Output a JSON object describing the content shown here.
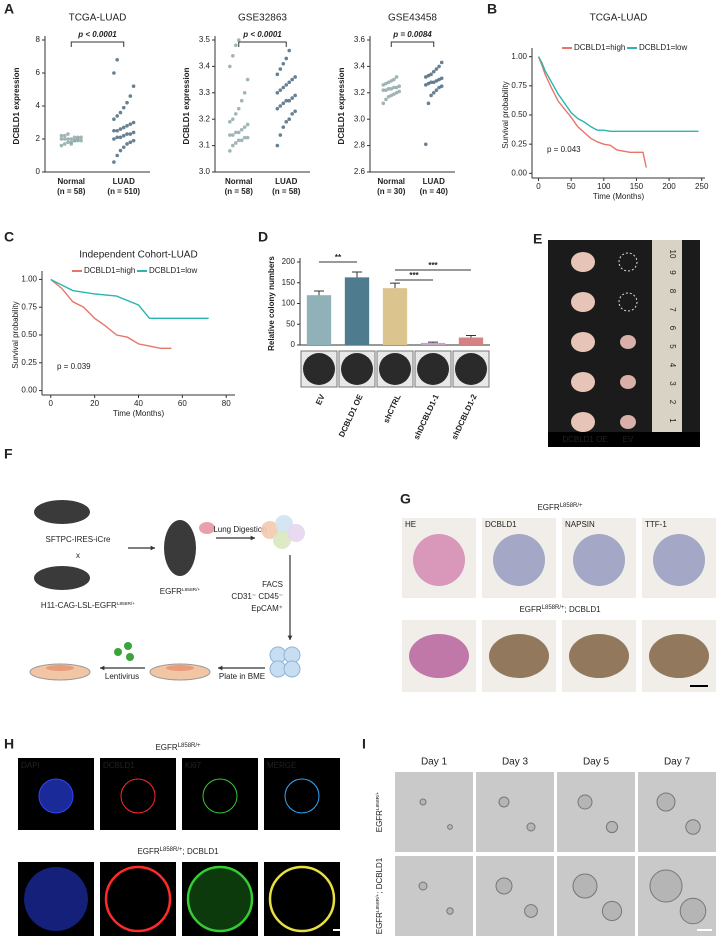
{
  "chart_data": [
    {
      "type": "strip",
      "title": "TCGA-LUAD",
      "ylabel": "DCBLD1 expression",
      "categories": [
        "Normal",
        "LUAD"
      ],
      "n_labels": [
        "(n = 58)",
        "(n = 510)"
      ],
      "annotation": "p < 0.0001",
      "series": [
        {
          "color": "#8fa9a9",
          "values": [
            1.6,
            1.7,
            1.8,
            1.8,
            1.9,
            1.9,
            1.9,
            2.0,
            2.0,
            2.0,
            2.0,
            2.1,
            2.1,
            2.1,
            2.2,
            2.2,
            2.3,
            1.7,
            1.9,
            2.0
          ]
        },
        {
          "color": "#4c6b80",
          "values": [
            0.6,
            1.0,
            1.3,
            1.5,
            1.7,
            1.8,
            1.9,
            2.0,
            2.1,
            2.1,
            2.2,
            2.3,
            2.3,
            2.4,
            2.5,
            2.5,
            2.6,
            2.7,
            2.8,
            2.9,
            3.0,
            3.2,
            3.4,
            3.6,
            3.9,
            4.2,
            4.6,
            5.2,
            6.0,
            6.8
          ]
        }
      ],
      "ylim": [
        0,
        8
      ],
      "yticks": [
        0,
        2,
        4,
        6,
        8
      ]
    },
    {
      "type": "strip",
      "title": "GSE32863",
      "ylabel": "DCBLD1 expression",
      "categories": [
        "Normal",
        "LUAD"
      ],
      "n_labels": [
        "(n = 58)",
        "(n = 58)"
      ],
      "annotation": "p < 0.0001",
      "series": [
        {
          "color": "#8fa9a9",
          "values": [
            3.08,
            3.1,
            3.11,
            3.12,
            3.12,
            3.13,
            3.13,
            3.14,
            3.14,
            3.15,
            3.15,
            3.16,
            3.17,
            3.18,
            3.19,
            3.2,
            3.22,
            3.24,
            3.27,
            3.3,
            3.35,
            3.4,
            3.44,
            3.48,
            3.5
          ]
        },
        {
          "color": "#4c6b80",
          "values": [
            3.1,
            3.14,
            3.17,
            3.19,
            3.2,
            3.22,
            3.23,
            3.24,
            3.25,
            3.26,
            3.27,
            3.27,
            3.28,
            3.29,
            3.3,
            3.31,
            3.32,
            3.33,
            3.34,
            3.35,
            3.36,
            3.37,
            3.39,
            3.41,
            3.43,
            3.46
          ]
        }
      ],
      "ylim": [
        3.0,
        3.5
      ],
      "yticks": [
        {
          "value": 3,
          "label": "3.0"
        },
        3.1,
        3.2,
        3.3,
        3.4,
        3.5
      ]
    },
    {
      "type": "strip",
      "title": "GSE43458",
      "ylabel": "DCBLD1 expression",
      "categories": [
        "Normal",
        "LUAD"
      ],
      "n_labels": [
        "(n = 30)",
        "(n = 40)"
      ],
      "annotation": "p = 0.0084",
      "series": [
        {
          "color": "#8fa9a9",
          "values": [
            3.12,
            3.15,
            3.17,
            3.18,
            3.19,
            3.2,
            3.21,
            3.22,
            3.22,
            3.23,
            3.23,
            3.24,
            3.24,
            3.25,
            3.26,
            3.27,
            3.28,
            3.29,
            3.3,
            3.32
          ]
        },
        {
          "color": "#4c6b80",
          "values": [
            2.81,
            3.12,
            3.18,
            3.2,
            3.22,
            3.24,
            3.25,
            3.26,
            3.27,
            3.28,
            3.28,
            3.29,
            3.3,
            3.31,
            3.32,
            3.33,
            3.34,
            3.36,
            3.38,
            3.4,
            3.43
          ]
        }
      ],
      "ylim": [
        2.6,
        3.6
      ],
      "yticks": [
        2.6,
        2.8,
        {
          "value": 3,
          "label": "3.0"
        },
        3.2,
        3.4,
        3.6
      ]
    },
    {
      "type": "line",
      "title": "TCGA-LUAD",
      "ylabel": "Survival probability",
      "xlabel": "Time (Months)",
      "annotation": "p = 0.043",
      "series": [
        {
          "name": "DCBLD1=high",
          "color": "#e8756a",
          "x": [
            0,
            5,
            10,
            20,
            30,
            40,
            50,
            60,
            70,
            80,
            90,
            100,
            110,
            120,
            140,
            160,
            165
          ],
          "values": [
            1,
            0.93,
            0.85,
            0.73,
            0.62,
            0.55,
            0.48,
            0.4,
            0.35,
            0.3,
            0.27,
            0.25,
            0.24,
            0.2,
            0.18,
            0.18,
            0.05
          ]
        },
        {
          "name": "DCBLD1=low",
          "color": "#2bb5b0",
          "x": [
            0,
            5,
            10,
            20,
            30,
            40,
            50,
            60,
            70,
            80,
            90,
            100,
            110,
            150,
            200,
            245
          ],
          "values": [
            1,
            0.95,
            0.88,
            0.78,
            0.68,
            0.6,
            0.52,
            0.47,
            0.44,
            0.4,
            0.37,
            0.37,
            0.36,
            0.36,
            0.36,
            0.36
          ]
        }
      ],
      "xlim": [
        -10,
        255
      ],
      "xticks": [
        0,
        50,
        100,
        150,
        200,
        250
      ],
      "ylim": [
        -0.04,
        1.04
      ],
      "yticks": [
        {
          "value": 0,
          "label": "0.00"
        },
        {
          "value": 0.25,
          "label": "0.25"
        },
        {
          "value": 0.5,
          "label": "0.50"
        },
        {
          "value": 0.75,
          "label": "0.75"
        },
        {
          "value": 1,
          "label": "1.00"
        }
      ]
    },
    {
      "type": "line",
      "title": "Independent  Cohort-LUAD",
      "ylabel": "Survival probability",
      "xlabel": "Time (Months)",
      "annotation": "p = 0.039",
      "series": [
        {
          "name": "DCBLD1=high",
          "color": "#e8756a",
          "x": [
            0,
            5,
            10,
            15,
            20,
            25,
            30,
            35,
            40,
            45,
            50,
            55
          ],
          "values": [
            1,
            0.92,
            0.8,
            0.75,
            0.65,
            0.58,
            0.5,
            0.48,
            0.42,
            0.4,
            0.38,
            0.38
          ]
        },
        {
          "name": "DCBLD1=low",
          "color": "#2bb5b0",
          "x": [
            0,
            5,
            10,
            20,
            30,
            40,
            45,
            50,
            60,
            70,
            72
          ],
          "values": [
            1,
            0.95,
            0.9,
            0.87,
            0.85,
            0.77,
            0.65,
            0.65,
            0.65,
            0.65,
            0.65
          ]
        }
      ],
      "xlim": [
        -4,
        84
      ],
      "xticks": [
        0,
        20,
        40,
        60,
        80
      ],
      "ylim": [
        -0.04,
        1.04
      ],
      "yticks": [
        {
          "value": 0,
          "label": "0.00"
        },
        {
          "value": 0.25,
          "label": "0.25"
        },
        {
          "value": 0.5,
          "label": "0.50"
        },
        {
          "value": 0.75,
          "label": "0.75"
        },
        {
          "value": 1,
          "label": "1.00"
        }
      ]
    },
    {
      "type": "bar",
      "ylabel": "Relative colony numbers",
      "categories": [
        "EV",
        "DCBLD1 OE",
        "shCTRL",
        "shDCBLD1-1",
        "shDCBLD1-2"
      ],
      "values": [
        120,
        163,
        137,
        5,
        18
      ],
      "errors": [
        10,
        13,
        12,
        2,
        5
      ],
      "colors": [
        "#8fb1b7",
        "#4e7b8e",
        "#dcc48f",
        "#c9a2c6",
        "#d38383"
      ],
      "significance": [
        "**",
        "***",
        "***"
      ],
      "ylim": [
        0,
        200
      ],
      "yticks": [
        0,
        50,
        100,
        150,
        200
      ]
    }
  ],
  "figure": {
    "panel_labels": [
      "A",
      "B",
      "C",
      "D",
      "E",
      "F",
      "G",
      "H",
      "I"
    ],
    "E": {
      "labels": [
        "DCBLD1 OE",
        "EV"
      ],
      "ruler": [
        "10",
        "9",
        "8",
        "7",
        "6",
        "5",
        "4",
        "3",
        "2",
        "1"
      ]
    },
    "F": {
      "mouse1": "SFTPC-IRES-iCre",
      "cross": "x",
      "mouse2": {
        "base": "H11-CAG-LSL-EGFR",
        "sup": "L858R/+"
      },
      "mouse3": {
        "base": "EGFR",
        "sup": "L858R/+"
      },
      "step1": "Lung Digestion",
      "facs": [
        "FACS",
        "CD31⁻ CD45⁻",
        "EpCAM⁺"
      ],
      "step3": "Plate in BME",
      "step4": "Lentivirus"
    },
    "G": {
      "title1": {
        "base": "EGFR",
        "sup": "L858R/+"
      },
      "title2": {
        "base": "EGFR",
        "sup": "L858R/+",
        "suffix": "; DCBLD1"
      },
      "stains": [
        "HE",
        "DCBLD1",
        "NAPSIN",
        "TTF-1"
      ]
    },
    "H": {
      "title1": {
        "base": "EGFR",
        "sup": "L858R/+"
      },
      "title2": {
        "base": "EGFR",
        "sup": "L858R/+",
        "suffix": "; DCBLD1"
      },
      "channels": [
        "DAPI",
        "DCBLD1",
        "Ki67",
        "MERGE"
      ]
    },
    "I": {
      "days": [
        "Day 1",
        "Day 3",
        "Day 5",
        "Day 7"
      ],
      "rows": [
        {
          "base": "EGFR",
          "sup": "L858R/+"
        },
        {
          "base": "EGFR",
          "sup": "L858R/+",
          "suffix": "; DCBLD1"
        }
      ]
    }
  }
}
